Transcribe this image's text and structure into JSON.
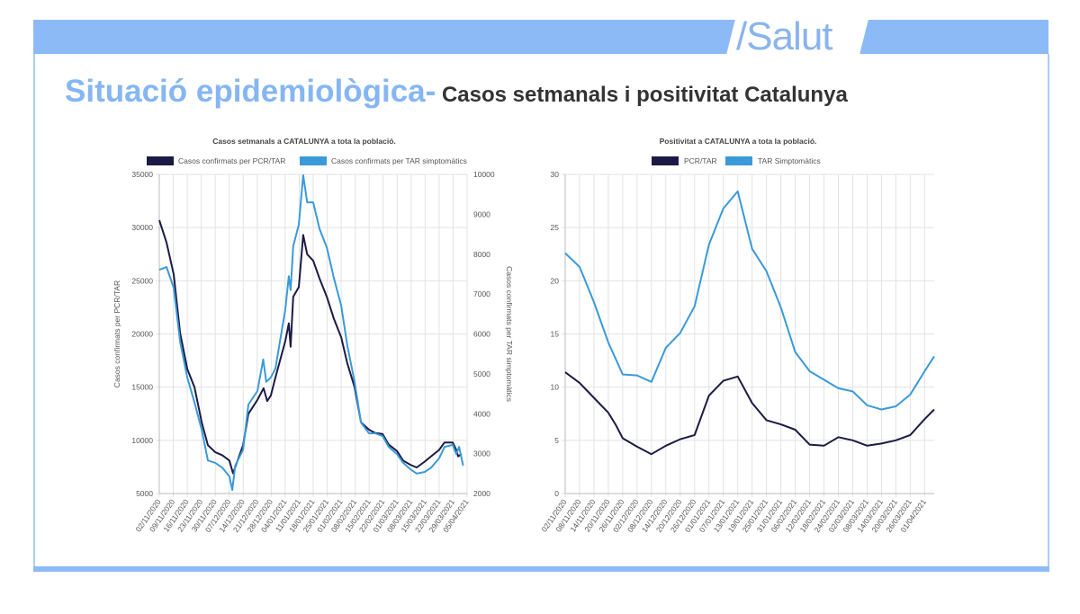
{
  "header": {
    "brand": "/Salut"
  },
  "title": {
    "main": "Situació epidemiològica-",
    "sub": " Casos setmanals i positivitat Catalunya"
  },
  "colors": {
    "dark": "#1c1a45",
    "blue": "#3a9ad9",
    "accent": "#8cbaf6"
  },
  "chart_data": [
    {
      "type": "line",
      "title": "Casos setmanals a CATALUNYA a tota la població.",
      "x_unit": "days since 02/11/2020",
      "xlim": [
        0,
        154
      ],
      "xtick_days": [
        0,
        7,
        14,
        21,
        28,
        35,
        42,
        49,
        56,
        63,
        70,
        77,
        84,
        91,
        98,
        105,
        112,
        119,
        126,
        133,
        140,
        147,
        154
      ],
      "xtick_labels": [
        "02/11/2020",
        "09/11/2020",
        "16/11/2020",
        "23/11/2020",
        "30/11/2020",
        "07/12/2020",
        "14/12/2020",
        "21/12/2020",
        "28/12/2020",
        "04/01/2021",
        "11/01/2021",
        "18/01/2021",
        "25/01/2021",
        "01/02/2021",
        "08/02/2021",
        "15/02/2021",
        "22/02/2021",
        "01/03/2021",
        "08/03/2021",
        "15/03/2021",
        "22/03/2021",
        "29/03/2021",
        "05/04/2021"
      ],
      "ylabel": "Casos confirmats per PCR/TAR",
      "ylim": [
        5000,
        35000
      ],
      "yticks": [
        "5000",
        "10000",
        "15000",
        "20000",
        "25000",
        "30000",
        "35000"
      ],
      "y2label": "Casos confirmats per TAR simptomàtics",
      "y2lim": [
        2000,
        10000
      ],
      "y2ticks": [
        "2000",
        "3000",
        "4000",
        "5000",
        "6000",
        "7000",
        "8000",
        "9000",
        "10000"
      ],
      "grid": true,
      "legend": "top",
      "series": [
        {
          "name": "Casos confirmats per PCR/TAR",
          "axis": "left",
          "color": "#1c1a45",
          "x": [
            0,
            3.6,
            7.2,
            10.4,
            14,
            17.6,
            21.2,
            24.3,
            27.9,
            31.5,
            35.1,
            36.9,
            41.9,
            44.6,
            49.1,
            52.2,
            54,
            55.8,
            58.1,
            63,
            64.8,
            65.7,
            67,
            69.8,
            72,
            74,
            77,
            80.2,
            83.8,
            87.4,
            91,
            94.1,
            97.7,
            100.9,
            104.9,
            108,
            111.7,
            114.8,
            118.9,
            122,
            125.6,
            128.8,
            132.8,
            136,
            140,
            142.7,
            146.8,
            148.6,
            149.5,
            150.4,
            151.3
          ],
          "y": [
            30700,
            28600,
            25600,
            20100,
            16700,
            15000,
            11700,
            9550,
            8900,
            8600,
            8100,
            6900,
            9550,
            12500,
            13800,
            14900,
            13700,
            14200,
            15900,
            19300,
            21000,
            18800,
            23500,
            24400,
            29300,
            27500,
            26900,
            25200,
            23500,
            21400,
            19700,
            17200,
            15000,
            11700,
            11000,
            10700,
            10600,
            9600,
            9000,
            8100,
            7700,
            7450,
            8000,
            8500,
            9100,
            9800,
            9800,
            9100,
            8500,
            8600,
            8700
          ]
        },
        {
          "name": "Casos confirmats per TAR simptomàtics",
          "axis": "right",
          "color": "#3a9ad9",
          "x": [
            0,
            3.6,
            7.2,
            10.4,
            14,
            17.6,
            21.2,
            24.3,
            27.9,
            31.5,
            35.1,
            36.5,
            38,
            41.9,
            44.6,
            49.1,
            52,
            53.5,
            55.8,
            58.1,
            63,
            64.8,
            65.7,
            67,
            69.8,
            72,
            74,
            77,
            80.2,
            83.8,
            87.4,
            91,
            94.1,
            97.7,
            100.9,
            104.9,
            108,
            111.7,
            114.8,
            118.9,
            122,
            125.6,
            128.8,
            132.8,
            136,
            140,
            142.7,
            146.8,
            148.6,
            150,
            152
          ],
          "y": [
            7610,
            7680,
            7160,
            5810,
            4910,
            4280,
            3600,
            2830,
            2770,
            2650,
            2430,
            2090,
            2700,
            3100,
            4230,
            4570,
            5360,
            4800,
            4910,
            5130,
            6600,
            7450,
            7100,
            8200,
            8740,
            9980,
            9300,
            9300,
            8630,
            8170,
            7390,
            6710,
            5700,
            4800,
            3780,
            3510,
            3510,
            3440,
            3170,
            2990,
            2770,
            2610,
            2500,
            2540,
            2650,
            2880,
            3170,
            3220,
            2990,
            3170,
            2700
          ]
        }
      ]
    },
    {
      "type": "line",
      "title": "Positivitat a CATALUNYA a tota la població.",
      "x_unit": "days since 02/11/2020",
      "xlim": [
        0,
        154
      ],
      "xtick_days": [
        0,
        6,
        12,
        18,
        24,
        30,
        36,
        42,
        48,
        54,
        60,
        66,
        72,
        78,
        84,
        90,
        96,
        102,
        108,
        114,
        120,
        126,
        132,
        138,
        144,
        150
      ],
      "xtick_labels": [
        "02/11/2020",
        "08/11/2020",
        "14/11/2020",
        "20/11/2020",
        "26/11/2020",
        "02/12/2020",
        "08/12/2020",
        "14/12/2020",
        "20/12/2020",
        "26/12/2020",
        "01/01/2021",
        "07/01/2021",
        "13/01/2021",
        "19/01/2021",
        "25/01/2021",
        "31/01/2021",
        "06/02/2021",
        "12/02/2021",
        "18/02/2021",
        "24/02/2021",
        "02/03/2021",
        "08/03/2021",
        "14/03/2021",
        "20/03/2021",
        "26/03/2021",
        "01/04/2021"
      ],
      "ylim": [
        0,
        30
      ],
      "yticks": [
        "0",
        "5",
        "10",
        "15",
        "20",
        "25",
        "30"
      ],
      "grid": true,
      "legend": "top",
      "series": [
        {
          "name": "PCR/TAR",
          "color": "#1c1a45",
          "x": [
            0,
            6,
            12,
            18,
            21,
            24,
            30,
            36,
            42,
            48,
            54,
            60,
            66,
            72,
            78,
            84,
            90,
            96,
            102,
            108,
            114,
            120,
            126,
            132,
            138,
            144,
            150,
            154
          ],
          "y": [
            11.4,
            10.4,
            9.0,
            7.6,
            6.5,
            5.2,
            4.4,
            3.7,
            4.5,
            5.1,
            5.5,
            9.2,
            10.6,
            11.0,
            8.5,
            6.9,
            6.5,
            6.0,
            4.6,
            4.5,
            5.3,
            5.0,
            4.5,
            4.7,
            5.0,
            5.5,
            7.0,
            7.9
          ]
        },
        {
          "name": "TAR Simptomàtics",
          "color": "#3a9ad9",
          "x": [
            0,
            6,
            12,
            18,
            24,
            30,
            36,
            42,
            48,
            54,
            60,
            66,
            72,
            78,
            84,
            90,
            96,
            102,
            108,
            114,
            120,
            126,
            132,
            138,
            144,
            150,
            154
          ],
          "y": [
            22.6,
            21.3,
            18.0,
            14.2,
            11.2,
            11.1,
            10.5,
            13.7,
            15.1,
            17.6,
            23.4,
            26.8,
            28.4,
            23.0,
            20.9,
            17.5,
            13.3,
            11.5,
            10.7,
            9.9,
            9.6,
            8.3,
            7.9,
            8.2,
            9.3,
            11.5,
            12.9
          ]
        }
      ]
    }
  ]
}
